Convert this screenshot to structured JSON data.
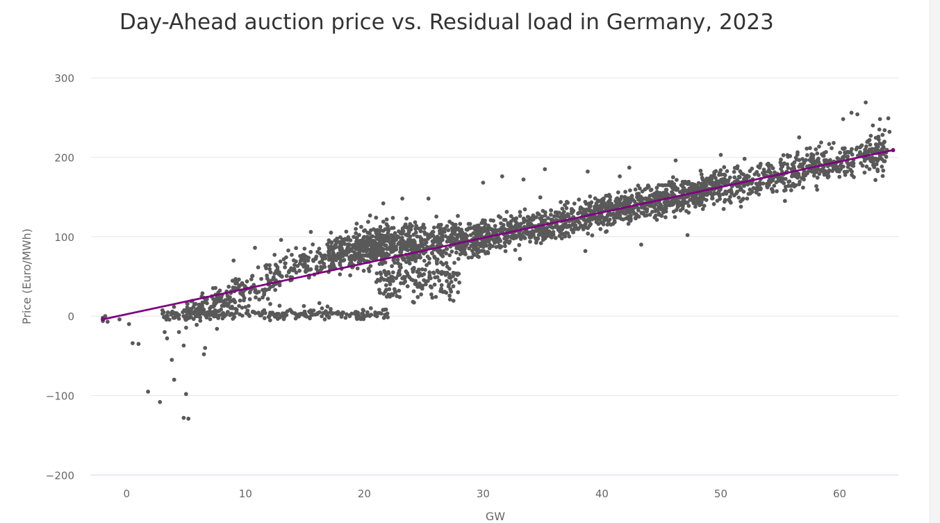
{
  "chart_data": {
    "type": "scatter",
    "title": "Day-Ahead auction price vs. Residual load in Germany, 2023",
    "xlabel": "GW",
    "ylabel": "Price (Euro/MWh)",
    "xlim": [
      -3,
      65
    ],
    "ylim": [
      -200,
      300
    ],
    "x_ticks": [
      0,
      10,
      20,
      30,
      40,
      50,
      60
    ],
    "y_ticks": [
      -200,
      -100,
      0,
      100,
      200,
      300
    ],
    "x_tick_labels": [
      "0",
      "10",
      "20",
      "30",
      "40",
      "50",
      "60"
    ],
    "y_tick_labels": [
      "−200",
      "−100",
      "0",
      "100",
      "200",
      "300"
    ],
    "grid": "horizontal",
    "legend": "none",
    "colors": {
      "points": "#595959",
      "trendline": "#800080",
      "grid": "#e6e6e6",
      "axis": "#ccd6eb",
      "text": "#666666"
    },
    "trendline": {
      "x": [
        -2,
        64.5
      ],
      "y": [
        -4,
        209
      ]
    },
    "outliers": [
      {
        "x": -2.0,
        "y": -6
      },
      {
        "x": -1.6,
        "y": -7
      },
      {
        "x": -2.0,
        "y": -2
      },
      {
        "x": -1.8,
        "y": 0
      },
      {
        "x": -0.6,
        "y": -4
      },
      {
        "x": 0.2,
        "y": -10
      },
      {
        "x": 0.5,
        "y": -34
      },
      {
        "x": 1.0,
        "y": -35
      },
      {
        "x": 1.8,
        "y": -95
      },
      {
        "x": 2.8,
        "y": -108
      },
      {
        "x": 3.2,
        "y": -20
      },
      {
        "x": 3.4,
        "y": -28
      },
      {
        "x": 3.8,
        "y": -55
      },
      {
        "x": 4.0,
        "y": -80
      },
      {
        "x": 4.4,
        "y": -20
      },
      {
        "x": 4.8,
        "y": -37
      },
      {
        "x": 4.8,
        "y": -128
      },
      {
        "x": 5.0,
        "y": -98
      },
      {
        "x": 5.2,
        "y": -129
      },
      {
        "x": 6.5,
        "y": -48
      },
      {
        "x": 6.6,
        "y": -40
      },
      {
        "x": 7.6,
        "y": -16
      },
      {
        "x": 9.0,
        "y": 70
      },
      {
        "x": 10.8,
        "y": 86
      },
      {
        "x": 13.0,
        "y": 96
      },
      {
        "x": 15.5,
        "y": 106
      },
      {
        "x": 21.2,
        "y": 4
      },
      {
        "x": 21.6,
        "y": 142
      },
      {
        "x": 23.2,
        "y": 148
      },
      {
        "x": 24.5,
        "y": 24
      },
      {
        "x": 25.4,
        "y": 148
      },
      {
        "x": 30.0,
        "y": 168
      },
      {
        "x": 31.6,
        "y": 176
      },
      {
        "x": 33.4,
        "y": 172
      },
      {
        "x": 35.2,
        "y": 185
      },
      {
        "x": 38.8,
        "y": 182
      },
      {
        "x": 41.5,
        "y": 176
      },
      {
        "x": 42.3,
        "y": 187
      },
      {
        "x": 46.2,
        "y": 196
      },
      {
        "x": 50.0,
        "y": 203
      },
      {
        "x": 52.0,
        "y": 198
      },
      {
        "x": 54.0,
        "y": 192
      },
      {
        "x": 56.6,
        "y": 225
      },
      {
        "x": 58.0,
        "y": 210
      },
      {
        "x": 59.5,
        "y": 218
      },
      {
        "x": 60.3,
        "y": 248
      },
      {
        "x": 61.0,
        "y": 256
      },
      {
        "x": 61.5,
        "y": 254
      },
      {
        "x": 62.2,
        "y": 269
      },
      {
        "x": 62.8,
        "y": 240
      },
      {
        "x": 63.4,
        "y": 248
      },
      {
        "x": 64.1,
        "y": 249
      },
      {
        "x": 61.2,
        "y": 175
      },
      {
        "x": 63.8,
        "y": 195
      },
      {
        "x": 64.2,
        "y": 232
      },
      {
        "x": 55.4,
        "y": 145
      },
      {
        "x": 47.2,
        "y": 102
      },
      {
        "x": 43.3,
        "y": 90
      },
      {
        "x": 38.6,
        "y": 82
      },
      {
        "x": 33.1,
        "y": 72
      }
    ]
  }
}
